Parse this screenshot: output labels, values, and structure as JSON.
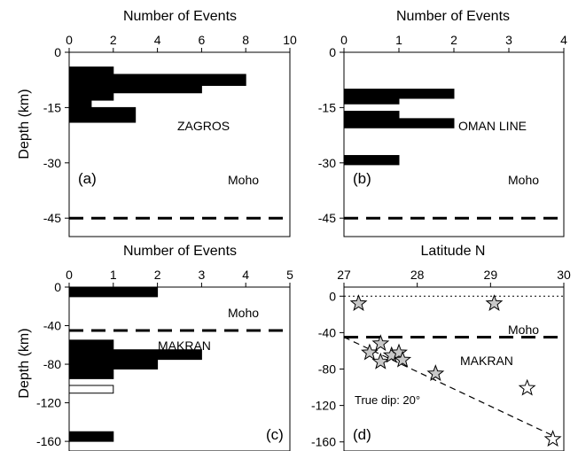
{
  "chart_data": [
    {
      "panel": "a",
      "type": "bar",
      "orientation": "horizontal",
      "title": "Number of Events",
      "ylabel": "Depth (km)",
      "xlim": [
        0,
        10
      ],
      "ylim": [
        -50,
        0
      ],
      "xticks": [
        0,
        2,
        4,
        6,
        8,
        10
      ],
      "yticks": [
        0,
        -15,
        -30,
        -45
      ],
      "panel_label": "(a)",
      "region_label": "ZAGROS",
      "moho_label": "Moho",
      "moho_depth": -45,
      "bars": [
        {
          "top": -4,
          "bottom": -7,
          "value": 2
        },
        {
          "top": -6,
          "bottom": -9,
          "value": 8
        },
        {
          "top": -9,
          "bottom": -11,
          "value": 6
        },
        {
          "top": -11,
          "bottom": -13,
          "value": 2
        },
        {
          "top": -13,
          "bottom": -15,
          "value": 1
        },
        {
          "top": -15,
          "bottom": -19,
          "value": 3
        }
      ]
    },
    {
      "panel": "b",
      "type": "bar",
      "orientation": "horizontal",
      "title": "Number of Events",
      "xlim": [
        0,
        4
      ],
      "ylim": [
        -50,
        0
      ],
      "xticks": [
        0,
        1,
        2,
        3,
        4
      ],
      "yticks": [
        0,
        -15,
        -30,
        -45
      ],
      "panel_label": "(b)",
      "region_label": "OMAN LINE",
      "moho_label": "Moho",
      "moho_depth": -45,
      "bars": [
        {
          "top": -10,
          "bottom": -12.5,
          "value": 2
        },
        {
          "top": -12.5,
          "bottom": -14,
          "value": 1
        },
        {
          "top": -16,
          "bottom": -18,
          "value": 1
        },
        {
          "top": -18,
          "bottom": -20.5,
          "value": 2
        },
        {
          "top": -28,
          "bottom": -30.5,
          "value": 1
        }
      ]
    },
    {
      "panel": "c",
      "type": "bar",
      "orientation": "horizontal",
      "title": "Number of Events",
      "ylabel": "Depth (km)",
      "xlim": [
        0,
        5
      ],
      "ylim": [
        -170,
        0
      ],
      "xticks": [
        0,
        1,
        2,
        3,
        4,
        5
      ],
      "yticks": [
        0,
        -40,
        -80,
        -120,
        -160
      ],
      "panel_label": "(c)",
      "region_label": "MAKRAN",
      "moho_label": "Moho",
      "moho_depth": -45,
      "bars": [
        {
          "top": 0,
          "bottom": -10,
          "value": 2,
          "fill": "#000000"
        },
        {
          "top": -55,
          "bottom": -65,
          "value": 1,
          "fill": "#000000"
        },
        {
          "top": -65,
          "bottom": -75,
          "value": 3,
          "fill": "#000000"
        },
        {
          "top": -75,
          "bottom": -85,
          "value": 2,
          "fill": "#000000"
        },
        {
          "top": -85,
          "bottom": -95,
          "value": 1,
          "fill": "#000000"
        },
        {
          "top": -102,
          "bottom": -110,
          "value": 1,
          "fill": "#ffffff"
        },
        {
          "top": -150,
          "bottom": -160,
          "value": 1,
          "fill": "#000000"
        }
      ]
    },
    {
      "panel": "d",
      "type": "scatter",
      "title": "Latitude N",
      "xlim": [
        27,
        30
      ],
      "ylim": [
        -170,
        10
      ],
      "xticks": [
        27,
        28,
        29,
        30
      ],
      "yticks": [
        0,
        -40,
        -80,
        -120,
        -160
      ],
      "panel_label": "(d)",
      "region_label": "MAKRAN",
      "moho_label": "Moho",
      "moho_depth": -45,
      "dip_label": "True dip: 20°",
      "dip_line": [
        [
          27.0,
          -45
        ],
        [
          29.9,
          -155
        ]
      ],
      "points": [
        {
          "lat": 27.2,
          "depth": -8
        },
        {
          "lat": 29.05,
          "depth": -8
        },
        {
          "lat": 27.35,
          "depth": -62
        },
        {
          "lat": 27.5,
          "depth": -52
        },
        {
          "lat": 27.5,
          "depth": -72
        },
        {
          "lat": 27.65,
          "depth": -65
        },
        {
          "lat": 27.75,
          "depth": -62
        },
        {
          "lat": 27.8,
          "depth": -70
        },
        {
          "lat": 28.25,
          "depth": -85
        },
        {
          "lat": 29.5,
          "depth": -101
        },
        {
          "lat": 29.85,
          "depth": -157
        }
      ]
    }
  ]
}
